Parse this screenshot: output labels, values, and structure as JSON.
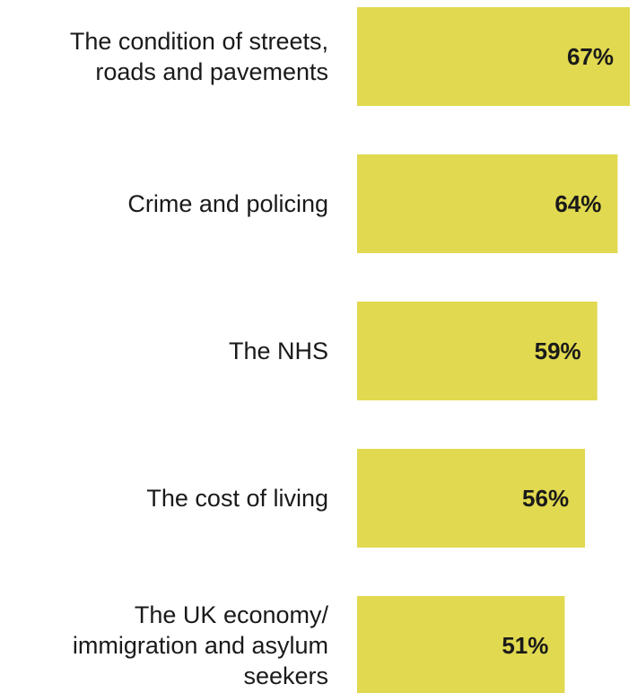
{
  "chart_data": {
    "type": "bar",
    "orientation": "horizontal",
    "categories": [
      "The condition of streets, roads and pavements",
      "Crime and policing",
      "The NHS",
      "The cost of living",
      "The UK economy/ immigration and asylum seekers"
    ],
    "category_lines": [
      [
        "The condition of streets,",
        "roads and pavements"
      ],
      [
        "Crime and policing"
      ],
      [
        "The NHS"
      ],
      [
        "The cost of living"
      ],
      [
        "The UK economy/",
        "immigration and asylum",
        "seekers"
      ]
    ],
    "values": [
      67,
      64,
      59,
      56,
      51
    ],
    "value_labels": [
      "67%",
      "64%",
      "59%",
      "56%",
      "51%"
    ],
    "unit": "%",
    "title": "",
    "xlabel": "",
    "ylabel": "",
    "xlim": [
      0,
      67
    ],
    "grid": false,
    "legend": "none",
    "bar_color": "#e1d94f",
    "text_color": "#1a1a1a"
  }
}
